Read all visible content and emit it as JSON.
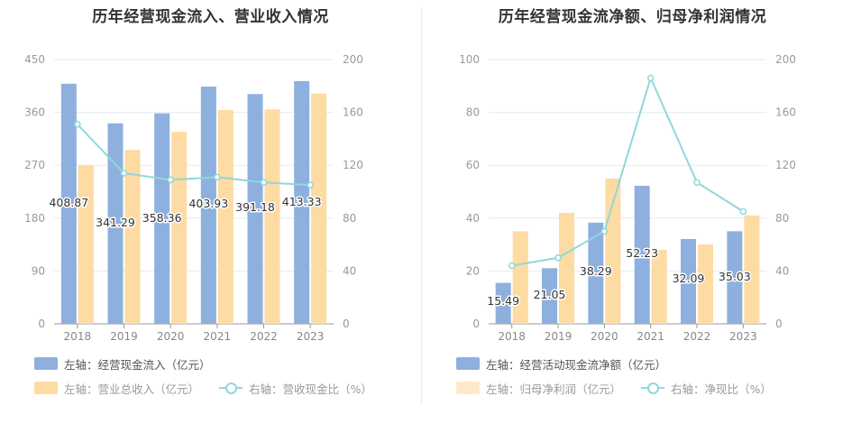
{
  "chart_data": [
    {
      "type": "bar",
      "title": "历年经营现金流入、营业收入情况",
      "categories": [
        "2018",
        "2019",
        "2020",
        "2021",
        "2022",
        "2023"
      ],
      "left_axis": {
        "min": 0,
        "max": 450,
        "ticks": [
          "0",
          "90",
          "180",
          "270",
          "360",
          "450"
        ]
      },
      "right_axis": {
        "min": 0,
        "max": 200,
        "ticks": [
          "0",
          "40",
          "80",
          "120",
          "160",
          "200"
        ]
      },
      "series": [
        {
          "name": "左轴：经营现金流入（亿元）",
          "axis": "left",
          "kind": "bar",
          "color": "#8eb0de",
          "values": [
            408.87,
            341.29,
            358.36,
            403.93,
            391.18,
            413.33
          ],
          "labels": [
            "408.87",
            "341.29",
            "358.36",
            "403.93",
            "391.18",
            "413.33"
          ]
        },
        {
          "name": "左轴：营业总收入（亿元）",
          "axis": "left",
          "kind": "bar",
          "color": "#fddba2",
          "values": [
            270,
            296,
            327,
            364,
            365,
            392
          ]
        },
        {
          "name": "右轴：营收现金比（%）",
          "axis": "right",
          "kind": "line",
          "color": "#8fd8dc",
          "values": [
            151,
            114,
            109,
            111,
            107,
            105
          ]
        }
      ]
    },
    {
      "type": "bar",
      "title": "历年经营现金流净额、归母净利润情况",
      "categories": [
        "2018",
        "2019",
        "2020",
        "2021",
        "2022",
        "2023"
      ],
      "left_axis": {
        "min": 0,
        "max": 100,
        "ticks": [
          "0",
          "20",
          "40",
          "60",
          "80",
          "100"
        ]
      },
      "right_axis": {
        "min": 0,
        "max": 200,
        "ticks": [
          "0",
          "40",
          "80",
          "120",
          "160",
          "200"
        ]
      },
      "series": [
        {
          "name": "左轴：经营活动现金流净额（亿元）",
          "axis": "left",
          "kind": "bar",
          "color": "#8eb0de",
          "values": [
            15.49,
            21.05,
            38.29,
            52.23,
            32.09,
            35.03
          ],
          "labels": [
            "15.49",
            "21.05",
            "38.29",
            "52.23",
            "32.09",
            "35.03"
          ]
        },
        {
          "name": "左轴：归母净利润（亿元）",
          "axis": "left",
          "kind": "bar",
          "color": "#fddba2",
          "values": [
            35,
            42,
            55,
            28,
            30,
            41
          ]
        },
        {
          "name": "右轴：净现比（%）",
          "axis": "right",
          "kind": "line",
          "color": "#8fd8dc",
          "values": [
            44,
            50,
            70,
            186,
            107,
            85
          ]
        }
      ]
    }
  ]
}
